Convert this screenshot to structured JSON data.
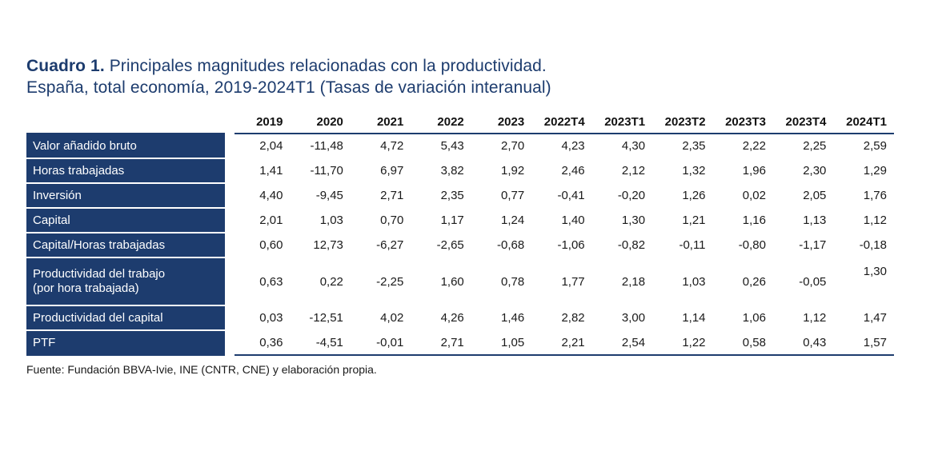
{
  "title": {
    "bold": "Cuadro 1.",
    "rest": "Principales magnitudes relacionadas con la productividad.",
    "line2": "España, total economía, 2019-2024T1  (Tasas de variación interanual)"
  },
  "table": {
    "columns": [
      "2019",
      "2020",
      "2021",
      "2022",
      "2023",
      "2022T4",
      "2023T1",
      "2023T2",
      "2023T3",
      "2023T4",
      "2024T1"
    ],
    "rows": [
      {
        "label": "Valor añadido bruto",
        "values": [
          "2,04",
          "-11,48",
          "4,72",
          "5,43",
          "2,70",
          "4,23",
          "4,30",
          "2,35",
          "2,22",
          "2,25",
          "2,59"
        ]
      },
      {
        "label": "Horas trabajadas",
        "values": [
          "1,41",
          "-11,70",
          "6,97",
          "3,82",
          "1,92",
          "2,46",
          "2,12",
          "1,32",
          "1,96",
          "2,30",
          "1,29"
        ]
      },
      {
        "label": "Inversión",
        "values": [
          "4,40",
          "-9,45",
          "2,71",
          "2,35",
          "0,77",
          "-0,41",
          "-0,20",
          "1,26",
          "0,02",
          "2,05",
          "1,76"
        ]
      },
      {
        "label": "Capital",
        "values": [
          "2,01",
          "1,03",
          "0,70",
          "1,17",
          "1,24",
          "1,40",
          "1,30",
          "1,21",
          "1,16",
          "1,13",
          "1,12"
        ]
      },
      {
        "label": "Capital/Horas trabajadas",
        "values": [
          "0,60",
          "12,73",
          "-6,27",
          "-2,65",
          "-0,68",
          "-1,06",
          "-0,82",
          "-0,11",
          "-0,80",
          "-1,17",
          "-0,18"
        ]
      },
      {
        "label": "Productividad del trabajo",
        "label2": "(por hora trabajada)",
        "values": [
          "0,63",
          "0,22",
          "-2,25",
          "1,60",
          "0,78",
          "1,77",
          "2,18",
          "1,03",
          "0,26",
          "-0,05",
          "1,30"
        ]
      },
      {
        "label": "Productividad del capital",
        "values": [
          "0,03",
          "-12,51",
          "4,02",
          "4,26",
          "1,46",
          "2,82",
          "3,00",
          "1,14",
          "1,06",
          "1,12",
          "1,47"
        ]
      },
      {
        "label": "PTF",
        "values": [
          "0,36",
          "-4,51",
          "-0,01",
          "2,71",
          "1,05",
          "2,21",
          "2,54",
          "1,22",
          "0,58",
          "0,43",
          "1,57"
        ]
      }
    ]
  },
  "source": "Fuente: Fundación BBVA-Ivie, INE (CNTR, CNE) y elaboración propia.",
  "colors": {
    "accent_navy": "#1d3c6e"
  }
}
